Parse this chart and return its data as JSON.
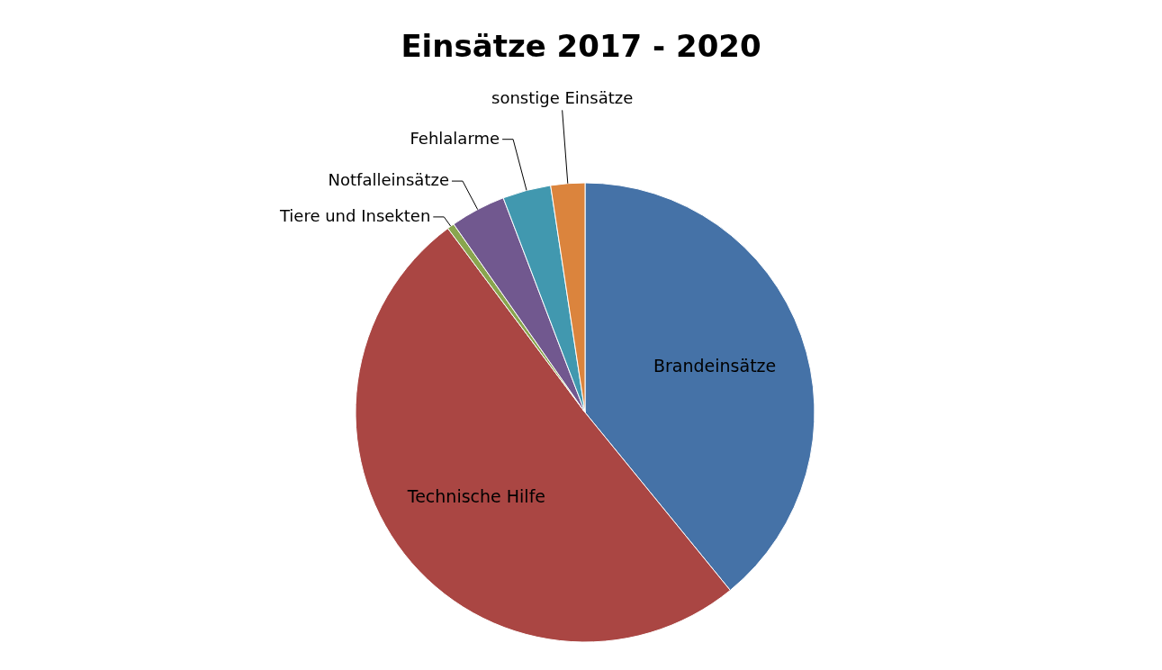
{
  "chart_data": {
    "type": "pie",
    "title": "Einsätze 2017 - 2020",
    "categories": [
      "Brandeinsätze",
      "Technische Hilfe",
      "Tiere und Insekten",
      "Notfalleinsätze",
      "Fehlalarme",
      "sonstige Einsätze"
    ],
    "values": [
      39.1,
      50.7,
      0.5,
      3.9,
      3.4,
      2.4
    ],
    "colors": [
      "#4572a7",
      "#aa4643",
      "#89a54e",
      "#71588f",
      "#4198af",
      "#db843d"
    ]
  }
}
